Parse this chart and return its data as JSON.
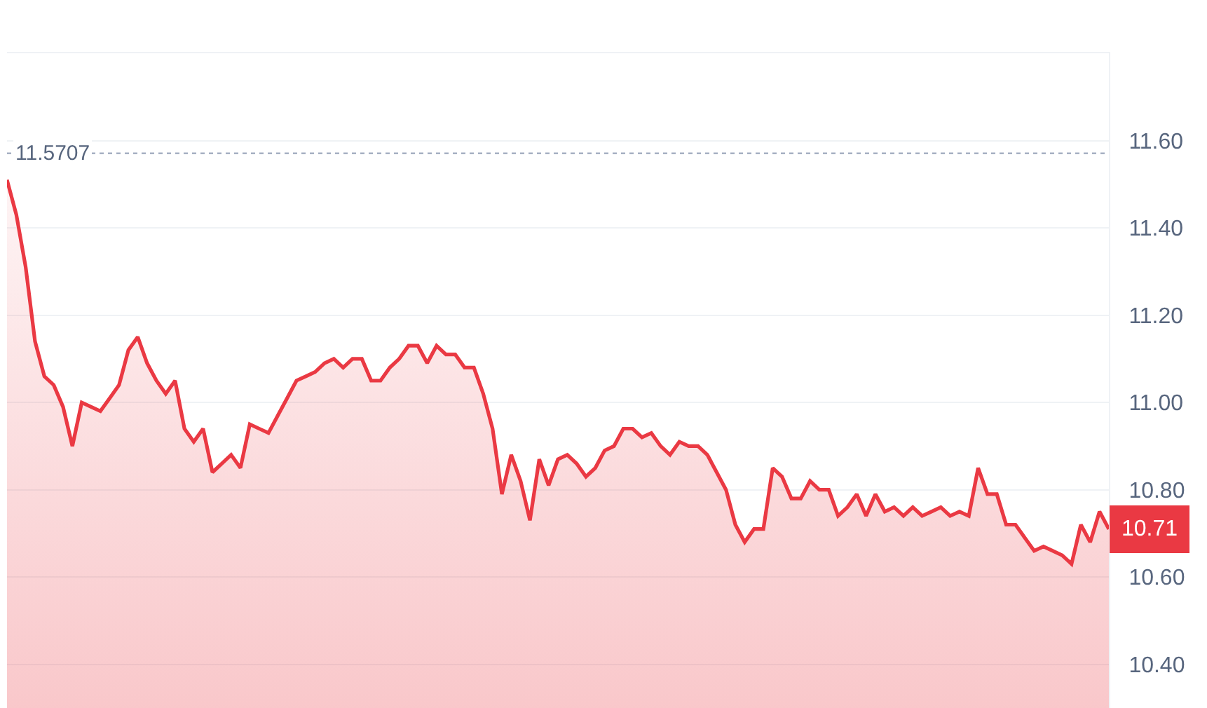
{
  "chart_data": {
    "type": "area",
    "categories": [
      null,
      null,
      null,
      null,
      null,
      null,
      null,
      null,
      null,
      null,
      null,
      null,
      null,
      null,
      null,
      null,
      null,
      null,
      null,
      null,
      null,
      null,
      null,
      null,
      null,
      null,
      null,
      null,
      null,
      null,
      null,
      null,
      null,
      null,
      null,
      null,
      null,
      null,
      null,
      null,
      null,
      null,
      null,
      null,
      null,
      null,
      null,
      null,
      null,
      null,
      null,
      null,
      null,
      null,
      null,
      null,
      null,
      null,
      null,
      null,
      null,
      null,
      null,
      null,
      null,
      null,
      null,
      null,
      null,
      null,
      null,
      null,
      null,
      null,
      null,
      null,
      null,
      null,
      null,
      null,
      null,
      null,
      null,
      null,
      null,
      null,
      null,
      null,
      null,
      null,
      null,
      null,
      null,
      null,
      null,
      null,
      null,
      null,
      null,
      null,
      null,
      null,
      null,
      null,
      null,
      null,
      null,
      null,
      null,
      null,
      null,
      null,
      null,
      null,
      null,
      null,
      null,
      null,
      null
    ],
    "series": [
      {
        "color": "#ea3943",
        "values": [
          11.51,
          11.43,
          11.31,
          11.14,
          11.06,
          11.04,
          10.99,
          10.9,
          11.0,
          10.99,
          10.98,
          11.01,
          11.04,
          11.12,
          11.15,
          11.09,
          11.05,
          11.02,
          11.05,
          10.94,
          10.91,
          10.94,
          10.84,
          10.86,
          10.88,
          10.85,
          10.95,
          10.94,
          10.93,
          10.97,
          11.01,
          11.05,
          11.06,
          11.07,
          11.09,
          11.1,
          11.08,
          11.1,
          11.1,
          11.05,
          11.05,
          11.08,
          11.1,
          11.13,
          11.13,
          11.09,
          11.13,
          11.11,
          11.11,
          11.08,
          11.08,
          11.02,
          10.94,
          10.79,
          10.88,
          10.82,
          10.73,
          10.87,
          10.81,
          10.87,
          10.88,
          10.86,
          10.83,
          10.85,
          10.89,
          10.9,
          10.94,
          10.94,
          10.92,
          10.93,
          10.9,
          10.88,
          10.91,
          10.9,
          10.9,
          10.88,
          10.84,
          10.8,
          10.72,
          10.68,
          10.71,
          10.71,
          10.85,
          10.83,
          10.78,
          10.78,
          10.82,
          10.8,
          10.8,
          10.74,
          10.76,
          10.79,
          10.74,
          10.79,
          10.75,
          10.76,
          10.74,
          10.76,
          10.74,
          10.75,
          10.76,
          10.74,
          10.75,
          10.74,
          10.85,
          10.79,
          10.79,
          10.72,
          10.72,
          10.69,
          10.66,
          10.67,
          10.66,
          10.65,
          10.63,
          10.72,
          10.68,
          10.75,
          10.71
        ]
      }
    ],
    "ylim": [
      10.3,
      11.8
    ],
    "yticks": [
      {
        "value": 10.4,
        "label": "10.40"
      },
      {
        "value": 10.6,
        "label": "10.60"
      },
      {
        "value": 10.8,
        "label": "10.80"
      },
      {
        "value": 11.0,
        "label": "11.00"
      },
      {
        "value": 11.2,
        "label": "11.20"
      },
      {
        "value": 11.4,
        "label": "11.40"
      },
      {
        "value": 11.6,
        "label": "11.60"
      }
    ],
    "grid": "y",
    "marker": "none",
    "line_style": "solid",
    "ref_lines": [
      {
        "axis": "y",
        "value": 11.5707,
        "label": "11.5707",
        "color": "#a6b0c3",
        "line_style": "dotted"
      }
    ],
    "annotations": [
      "10.71"
    ]
  }
}
